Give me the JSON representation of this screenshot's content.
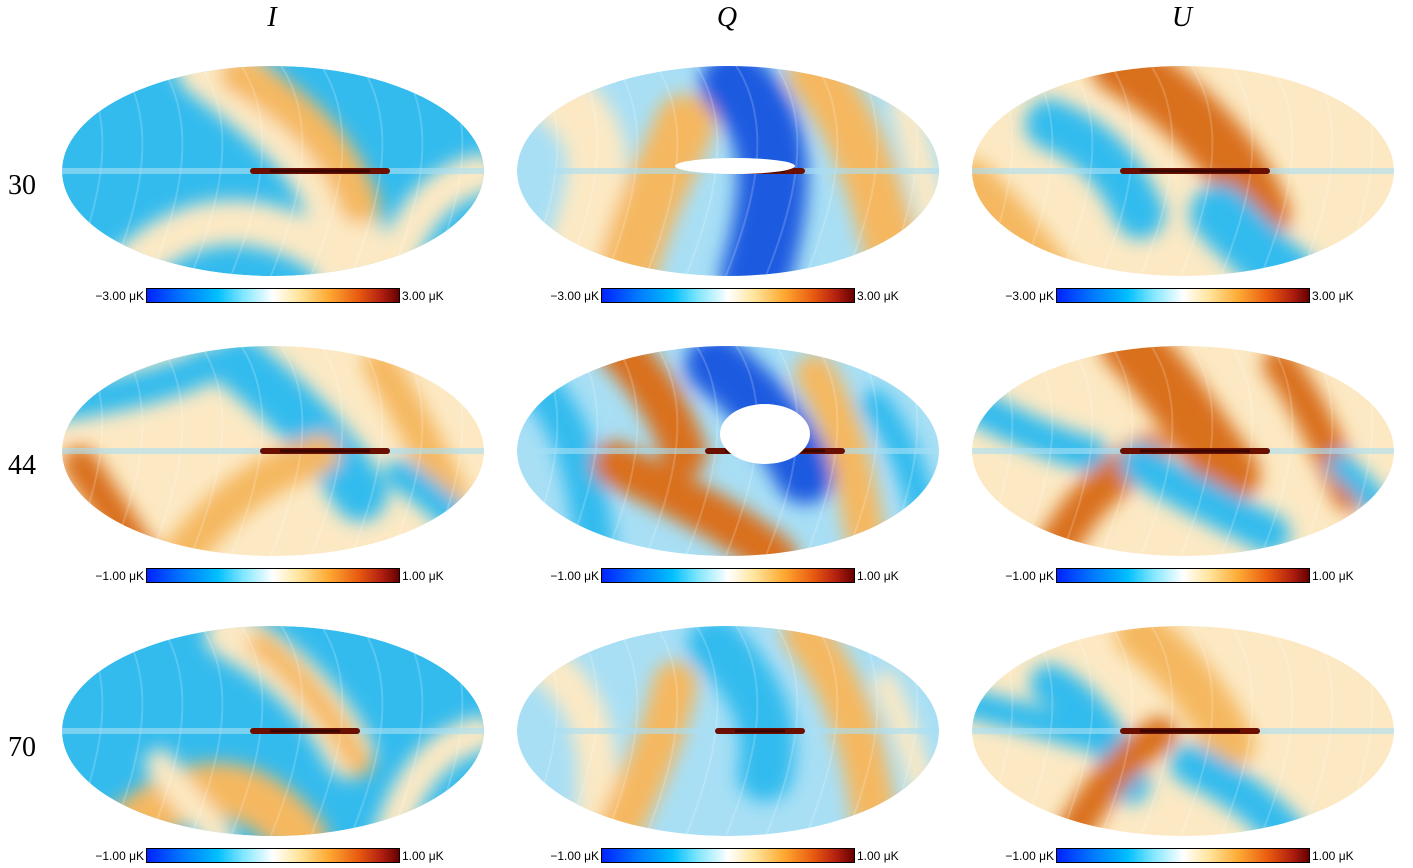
{
  "columns": [
    "I",
    "Q",
    "U"
  ],
  "rows": [
    {
      "label": "30",
      "cbar_min": "−3.00 μK",
      "cbar_max": "3.00 μK"
    },
    {
      "label": "44",
      "cbar_min": "−1.00 μK",
      "cbar_max": "1.00 μK"
    },
    {
      "label": "70",
      "cbar_min": "−1.00 μK",
      "cbar_max": "1.00 μK"
    }
  ],
  "colormap": [
    "#0022ff",
    "#00bfff",
    "#ffffff",
    "#ffaa33",
    "#660000"
  ],
  "map_projection": "mollweide",
  "map_colors": {
    "blue": "#33bbee",
    "light_blue": "#a8dff5",
    "cream": "#fce9c4",
    "orange": "#f5b860",
    "dark_orange": "#d9701c",
    "dark_red": "#6b0f00",
    "deep_blue": "#1a5ae0"
  }
}
